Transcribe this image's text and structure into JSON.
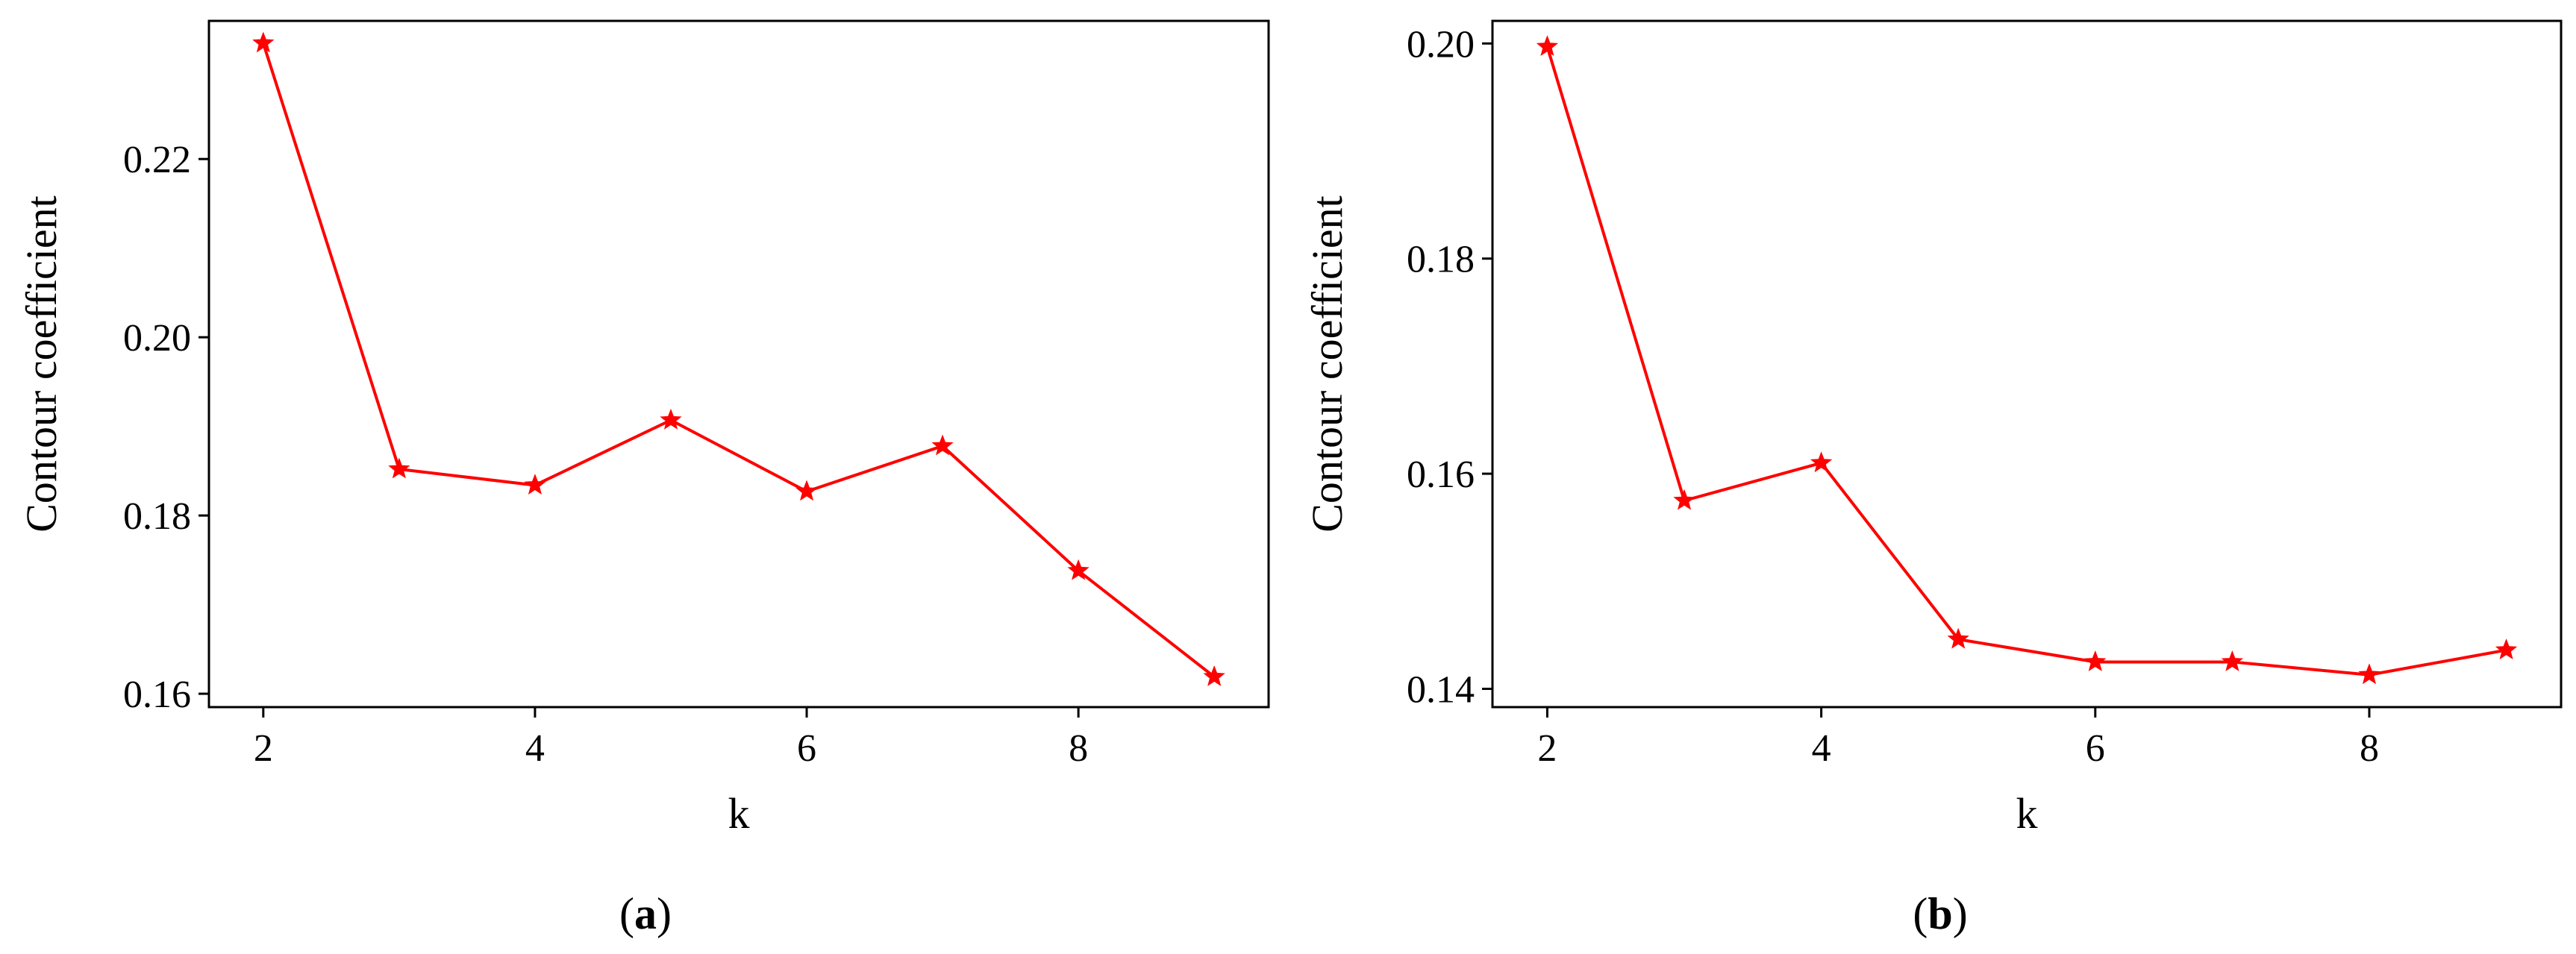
{
  "chart_data": [
    {
      "type": "line",
      "panel": "a",
      "caption": {
        "open": "(",
        "letter": "a",
        "close": ")"
      },
      "xlabel": "k",
      "ylabel": "Contour coefficient",
      "xlim": [
        1.6,
        9.4
      ],
      "ylim": [
        0.1585,
        0.2355
      ],
      "xticks": [
        2,
        4,
        6,
        8
      ],
      "xtick_labels": [
        "2",
        "4",
        "6",
        "8"
      ],
      "yticks": [
        0.16,
        0.18,
        0.2,
        0.22
      ],
      "ytick_labels": [
        "0.16",
        "0.18",
        "0.20",
        "0.22"
      ],
      "grid": false,
      "series": [
        {
          "color": "#ff0000",
          "marker": "star",
          "x": [
            2,
            3,
            4,
            5,
            6,
            7,
            8,
            9
          ],
          "values": [
            0.233,
            0.1852,
            0.1834,
            0.1907,
            0.1827,
            0.1878,
            0.1738,
            0.1619
          ]
        }
      ]
    },
    {
      "type": "line",
      "panel": "b",
      "caption": {
        "open": "(",
        "letter": "b",
        "close": ")"
      },
      "xlabel": "k",
      "ylabel": "Contour coefficient",
      "xlim": [
        1.6,
        9.4
      ],
      "ylim": [
        0.1383,
        0.2021
      ],
      "xticks": [
        2,
        4,
        6,
        8
      ],
      "xtick_labels": [
        "2",
        "4",
        "6",
        "8"
      ],
      "yticks": [
        0.14,
        0.16,
        0.18,
        0.2
      ],
      "ytick_labels": [
        "0.14",
        "0.16",
        "0.18",
        "0.20"
      ],
      "grid": false,
      "series": [
        {
          "color": "#ff0000",
          "marker": "star",
          "x": [
            2,
            3,
            4,
            5,
            6,
            7,
            8,
            9
          ],
          "values": [
            0.1997,
            0.1575,
            0.161,
            0.1446,
            0.1425,
            0.1425,
            0.1413,
            0.1436
          ]
        }
      ]
    }
  ]
}
